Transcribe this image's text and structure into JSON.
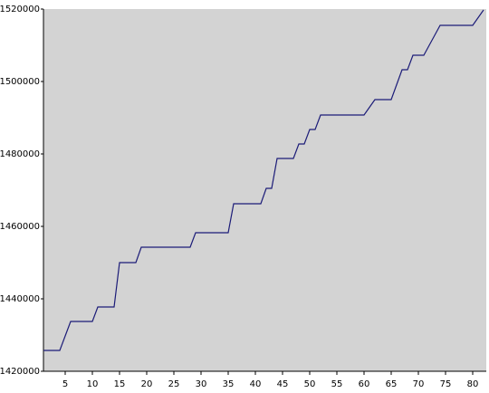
{
  "chart_data": {
    "type": "line",
    "x": [
      1,
      2,
      3,
      4,
      5,
      6,
      7,
      8,
      9,
      10,
      11,
      12,
      13,
      14,
      15,
      16,
      17,
      18,
      19,
      20,
      21,
      22,
      23,
      24,
      25,
      26,
      27,
      28,
      29,
      30,
      31,
      32,
      33,
      34,
      35,
      36,
      37,
      38,
      39,
      40,
      41,
      42,
      43,
      44,
      45,
      46,
      47,
      48,
      49,
      50,
      51,
      52,
      53,
      54,
      55,
      56,
      57,
      58,
      59,
      60,
      61,
      62,
      63,
      64,
      65,
      66,
      67,
      68,
      69,
      70,
      71,
      72,
      73,
      74,
      75,
      76,
      77,
      78,
      79,
      80,
      81,
      82
    ],
    "series": [
      {
        "color": "#1c1c78",
        "values": [
          1425750,
          1425750,
          1425750,
          1425750,
          1429750,
          1433750,
          1433750,
          1433750,
          1433750,
          1433750,
          1437750,
          1437750,
          1437750,
          1437750,
          1450000,
          1450000,
          1450000,
          1450000,
          1454250,
          1454250,
          1454250,
          1454250,
          1454250,
          1454250,
          1454250,
          1454250,
          1454250,
          1454250,
          1458250,
          1458250,
          1458250,
          1458250,
          1458250,
          1458250,
          1458250,
          1466250,
          1466250,
          1466250,
          1466250,
          1466250,
          1466250,
          1470500,
          1470500,
          1478750,
          1478750,
          1478750,
          1478750,
          1482750,
          1482750,
          1486750,
          1486750,
          1490750,
          1490750,
          1490750,
          1490750,
          1490750,
          1490750,
          1490750,
          1490750,
          1490750,
          1492875,
          1495000,
          1495000,
          1495000,
          1495000,
          1499125,
          1503250,
          1503250,
          1507250,
          1507250,
          1507250,
          1510000,
          1512750,
          1515500,
          1515500,
          1515500,
          1515500,
          1515500,
          1515500,
          1515500,
          1517625,
          1519750
        ]
      }
    ],
    "xlim": [
      1,
      82.5
    ],
    "xticks": [
      5,
      10,
      15,
      20,
      25,
      30,
      35,
      40,
      45,
      50,
      55,
      60,
      65,
      70,
      75,
      80
    ],
    "ylim": [
      1420000,
      1520000
    ],
    "yticks": [
      1420000,
      1440000,
      1460000,
      1480000,
      1500000,
      1520000
    ],
    "background": "#d3d3d3"
  }
}
